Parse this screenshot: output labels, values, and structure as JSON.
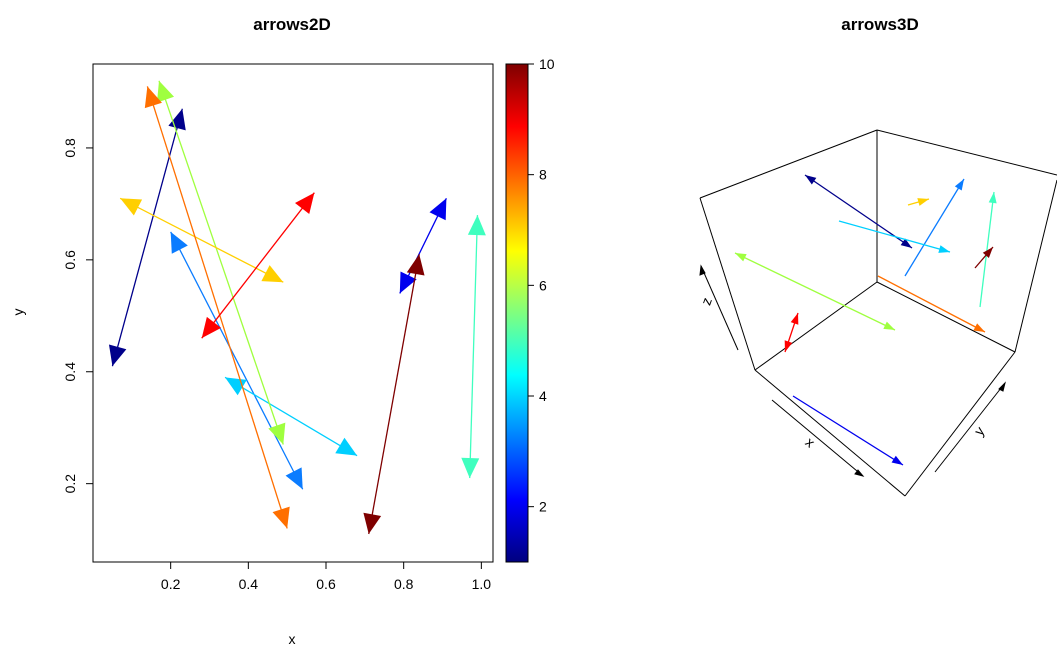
{
  "chart_data": [
    {
      "type": "arrows",
      "title": "arrows2D",
      "xlabel": "x",
      "ylabel": "y",
      "xlim": [
        0.0,
        1.03
      ],
      "ylim": [
        0.06,
        0.95
      ],
      "x_ticks": [
        "0.2",
        "0.4",
        "0.6",
        "0.8",
        "1.0"
      ],
      "x_tick_values": [
        0.2,
        0.4,
        0.6,
        0.8,
        1.0
      ],
      "y_ticks": [
        "0.2",
        "0.4",
        "0.6",
        "0.8"
      ],
      "y_tick_values": [
        0.2,
        0.4,
        0.6,
        0.8
      ],
      "colorbar": {
        "range": [
          1,
          10
        ],
        "ticks": [
          "2",
          "4",
          "6",
          "8",
          "10"
        ],
        "tick_values": [
          2,
          4,
          6,
          8,
          10
        ],
        "colors": [
          "#00007F",
          "#0000FF",
          "#007FFF",
          "#00FFFF",
          "#7FFF7F",
          "#FFFF00",
          "#FF7F00",
          "#FF0000",
          "#7F0000"
        ]
      },
      "arrows": [
        {
          "x0": 0.05,
          "y0": 0.41,
          "x1": 0.23,
          "y1": 0.87,
          "value": 1,
          "color": "#00008B",
          "heads": "both"
        },
        {
          "x0": 0.79,
          "y0": 0.54,
          "x1": 0.91,
          "y1": 0.71,
          "value": 2,
          "color": "#0000EE",
          "heads": "both"
        },
        {
          "x0": 0.2,
          "y0": 0.65,
          "x1": 0.54,
          "y1": 0.19,
          "value": 3,
          "color": "#0B7CFF",
          "heads": "both"
        },
        {
          "x0": 0.34,
          "y0": 0.39,
          "x1": 0.68,
          "y1": 0.25,
          "value": 4,
          "color": "#00CFFF",
          "heads": "both"
        },
        {
          "x0": 0.97,
          "y0": 0.21,
          "x1": 0.99,
          "y1": 0.68,
          "value": 5,
          "color": "#3FFFBF",
          "heads": "both"
        },
        {
          "x0": 0.17,
          "y0": 0.92,
          "x1": 0.49,
          "y1": 0.27,
          "value": 6,
          "color": "#9FFF3F",
          "heads": "both"
        },
        {
          "x0": 0.07,
          "y0": 0.71,
          "x1": 0.49,
          "y1": 0.56,
          "value": 7,
          "color": "#FFCF00",
          "heads": "both"
        },
        {
          "x0": 0.14,
          "y0": 0.91,
          "x1": 0.5,
          "y1": 0.12,
          "value": 8,
          "color": "#FF6F00",
          "heads": "both"
        },
        {
          "x0": 0.28,
          "y0": 0.46,
          "x1": 0.57,
          "y1": 0.72,
          "value": 9,
          "color": "#FF0000",
          "heads": "both"
        },
        {
          "x0": 0.71,
          "y0": 0.11,
          "x1": 0.84,
          "y1": 0.61,
          "value": 10,
          "color": "#7F0000",
          "heads": "both"
        }
      ]
    },
    {
      "type": "arrows3d",
      "title": "arrows3D",
      "xlabel": "x",
      "ylabel": "y",
      "zlabel": "z",
      "arrows": [
        {
          "color": "#00008B",
          "heads": "both"
        },
        {
          "color": "#0000EE",
          "heads": "start"
        },
        {
          "color": "#0B7CFF",
          "heads": "end"
        },
        {
          "color": "#00CFFF",
          "heads": "start"
        },
        {
          "color": "#3FFFBF",
          "heads": "end"
        },
        {
          "color": "#9FFF3F",
          "heads": "both"
        },
        {
          "color": "#FFCF00",
          "heads": "end"
        },
        {
          "color": "#FF6F00",
          "heads": "start"
        },
        {
          "color": "#FF0000",
          "heads": "both"
        },
        {
          "color": "#7F0000",
          "heads": "end"
        }
      ]
    }
  ]
}
